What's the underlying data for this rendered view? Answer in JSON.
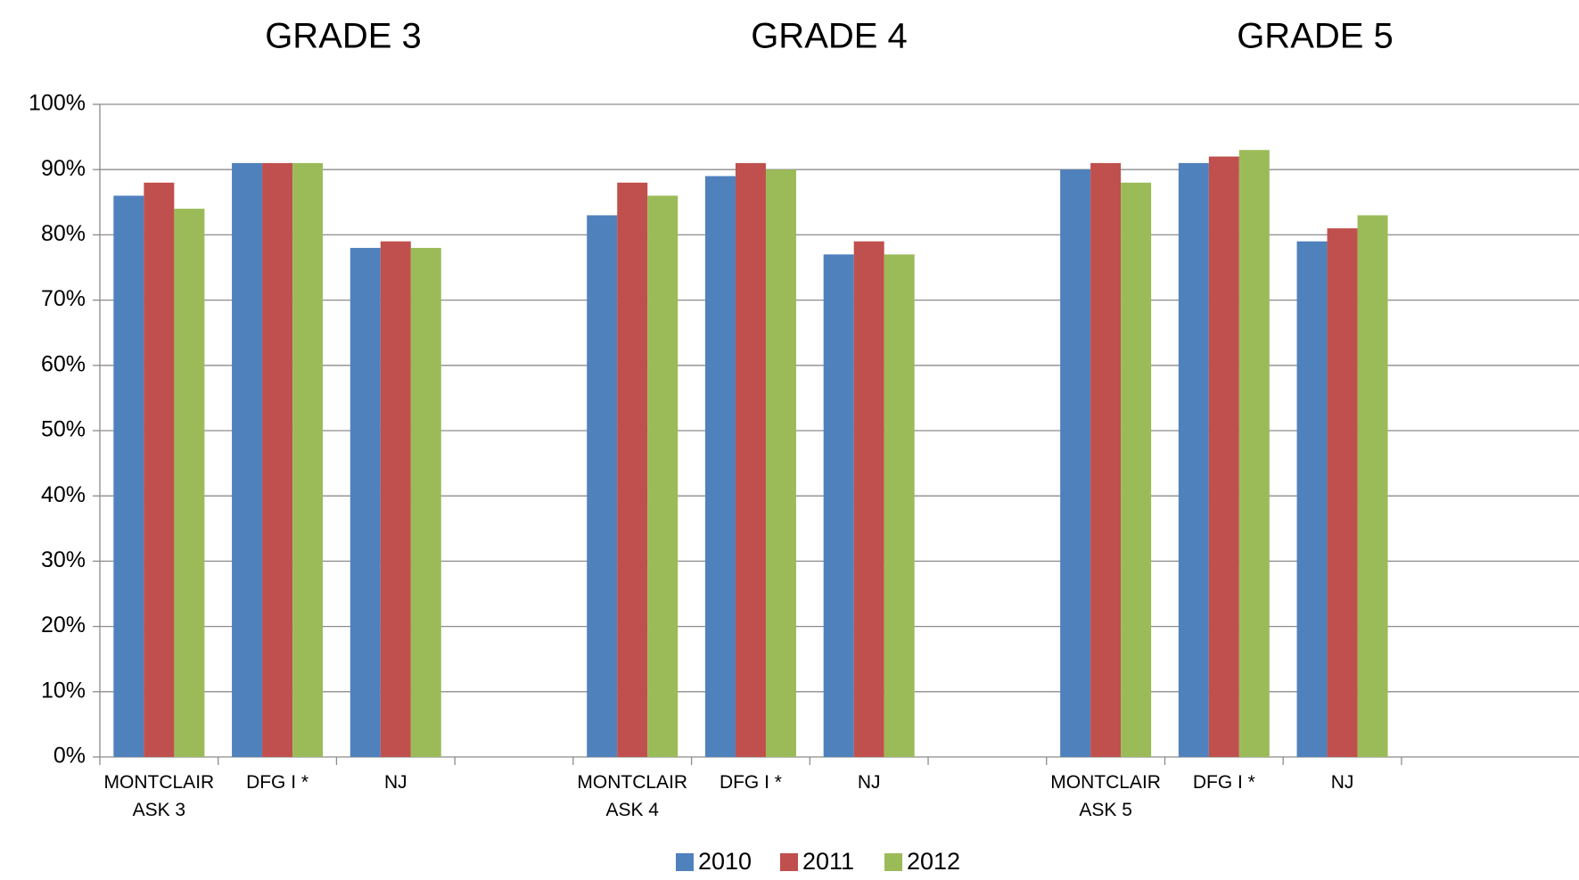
{
  "chart_data": {
    "type": "bar",
    "group_titles": [
      "GRADE 3",
      "GRADE 4",
      "GRADE 5"
    ],
    "categories": [
      [
        "MONTCLAIR",
        "ASK 3"
      ],
      [
        "DFG I *"
      ],
      [
        "NJ"
      ],
      [
        ""
      ],
      [
        "MONTCLAIR",
        "ASK 4"
      ],
      [
        "DFG I *"
      ],
      [
        "NJ"
      ],
      [
        ""
      ],
      [
        "MONTCLAIR",
        "ASK 5"
      ],
      [
        "DFG I *"
      ],
      [
        "NJ"
      ]
    ],
    "series": [
      {
        "name": "2010",
        "color": "#4F81BD",
        "values": [
          86,
          91,
          78,
          null,
          83,
          89,
          77,
          null,
          90,
          91,
          79
        ]
      },
      {
        "name": "2011",
        "color": "#C0504D",
        "values": [
          88,
          91,
          79,
          null,
          88,
          91,
          79,
          null,
          91,
          92,
          81
        ]
      },
      {
        "name": "2012",
        "color": "#9BBB59",
        "values": [
          84,
          91,
          78,
          null,
          86,
          90,
          77,
          null,
          88,
          93,
          83
        ]
      }
    ],
    "y_ticks": [
      "0%",
      "10%",
      "20%",
      "30%",
      "40%",
      "50%",
      "60%",
      "70%",
      "80%",
      "90%",
      "100%"
    ],
    "ylim": [
      0,
      100
    ],
    "xlabel": "",
    "ylabel": "",
    "grid": true,
    "legend_position": "bottom-center"
  }
}
